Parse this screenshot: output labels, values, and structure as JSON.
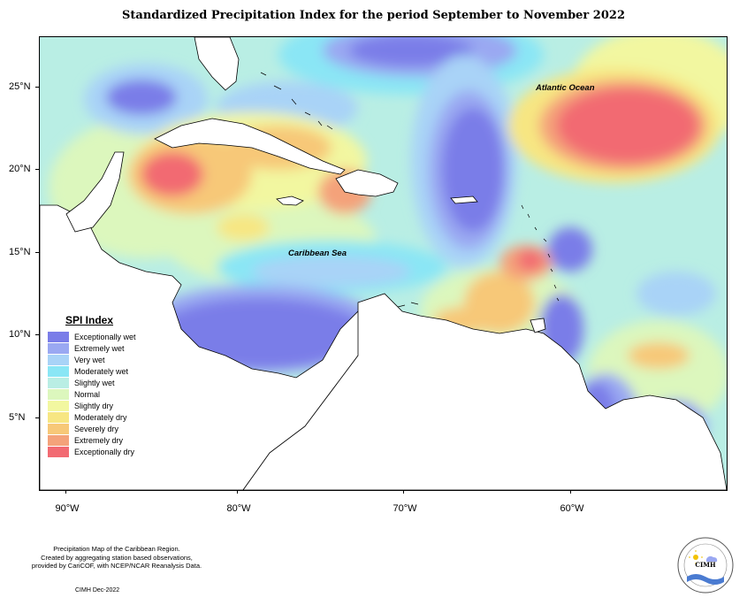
{
  "title": "Standardized Precipitation Index for the period September to November 2022",
  "map": {
    "latitude_labels": [
      "25°N",
      "20°N",
      "15°N",
      "10°N",
      "5°N"
    ],
    "longitude_labels": [
      "90°W",
      "80°W",
      "70°W",
      "60°W"
    ],
    "ocean_labels": {
      "atlantic": "Atlantic Ocean",
      "caribbean": "Caribbean Sea"
    }
  },
  "legend": {
    "title": "SPI Index",
    "items": [
      {
        "label": "Exceptionally wet",
        "color": "#7a7de8"
      },
      {
        "label": "Extremely wet",
        "color": "#9aa8f2"
      },
      {
        "label": "Very wet",
        "color": "#a9d3f7"
      },
      {
        "label": "Moderately wet",
        "color": "#8ae6f5"
      },
      {
        "label": "Slightly wet",
        "color": "#b9eee4"
      },
      {
        "label": "Normal",
        "color": "#dcf7bd"
      },
      {
        "label": "Slightly dry",
        "color": "#f2f7a0"
      },
      {
        "label": "Moderately dry",
        "color": "#f7e682"
      },
      {
        "label": "Severely dry",
        "color": "#f7c878"
      },
      {
        "label": "Extremely dry",
        "color": "#f4a27a"
      },
      {
        "label": "Exceptionally dry",
        "color": "#f26a72"
      }
    ]
  },
  "caption": {
    "line1": "Precipitation Map of the Caribbean Region.",
    "line2": "Created by aggregating station based observations,",
    "line3": "provided by CariCOF, with NCEP/NCAR Reanalysis Data."
  },
  "credit": "CIMH Dec-2022",
  "logo": {
    "text": "CIMH"
  }
}
